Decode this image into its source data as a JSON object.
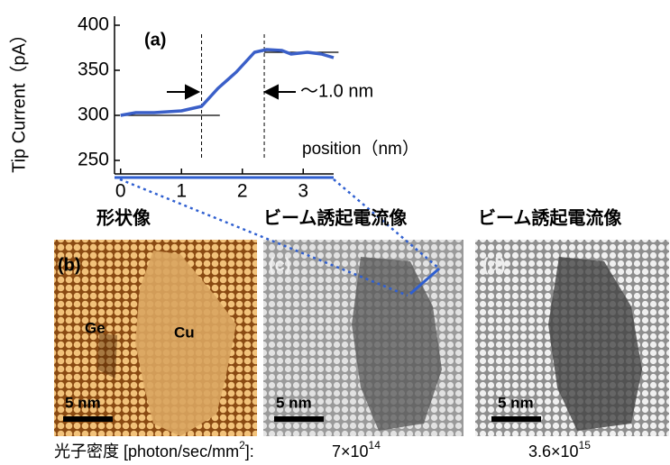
{
  "chart_data": {
    "type": "line",
    "panel_label": "(a)",
    "x_label": "position（nm）",
    "y_label": "Tip Current（pA）",
    "annotation": "～1.0 nm",
    "x": [
      0,
      0.25,
      0.55,
      1,
      1.33,
      1.6,
      1.9,
      2.2,
      2.4,
      2.65,
      2.8,
      3.07,
      3.3,
      3.5
    ],
    "series": [
      {
        "color": "#3a5fc8",
        "values": [
          300,
          303,
          303,
          305,
          310,
          330,
          348,
          370,
          373,
          372,
          368,
          370,
          368,
          364
        ]
      }
    ],
    "fit_lines": [
      {
        "x": [
          0,
          1.63
        ],
        "y": 300
      },
      {
        "x": [
          2.36,
          3.58
        ],
        "y": 370
      }
    ],
    "vlines": [
      1.33,
      2.36
    ],
    "xlim": [
      -0.1,
      3.5
    ],
    "ylim": [
      235,
      410
    ],
    "xticks": [
      0,
      1,
      2,
      3
    ],
    "yticks": [
      250,
      300,
      350,
      400
    ]
  },
  "panels": [
    {
      "title": "形状像",
      "label": "(b)",
      "scale": "5 nm",
      "tags": [
        "Ge",
        "Cu"
      ]
    },
    {
      "title": "ビーム誘起電流像",
      "label": "(c)",
      "scale": "5 nm"
    },
    {
      "title": "ビーム誘起電流像",
      "label": "(d)",
      "scale": "5 nm"
    }
  ],
  "footer": {
    "caption": "光子密度  [photon/sec/mm",
    "caption_sup": "2",
    "caption_end": "]:",
    "density_c": "7×10",
    "density_c_exp": "14",
    "density_d": "3.6×10",
    "density_d_exp": "15"
  }
}
